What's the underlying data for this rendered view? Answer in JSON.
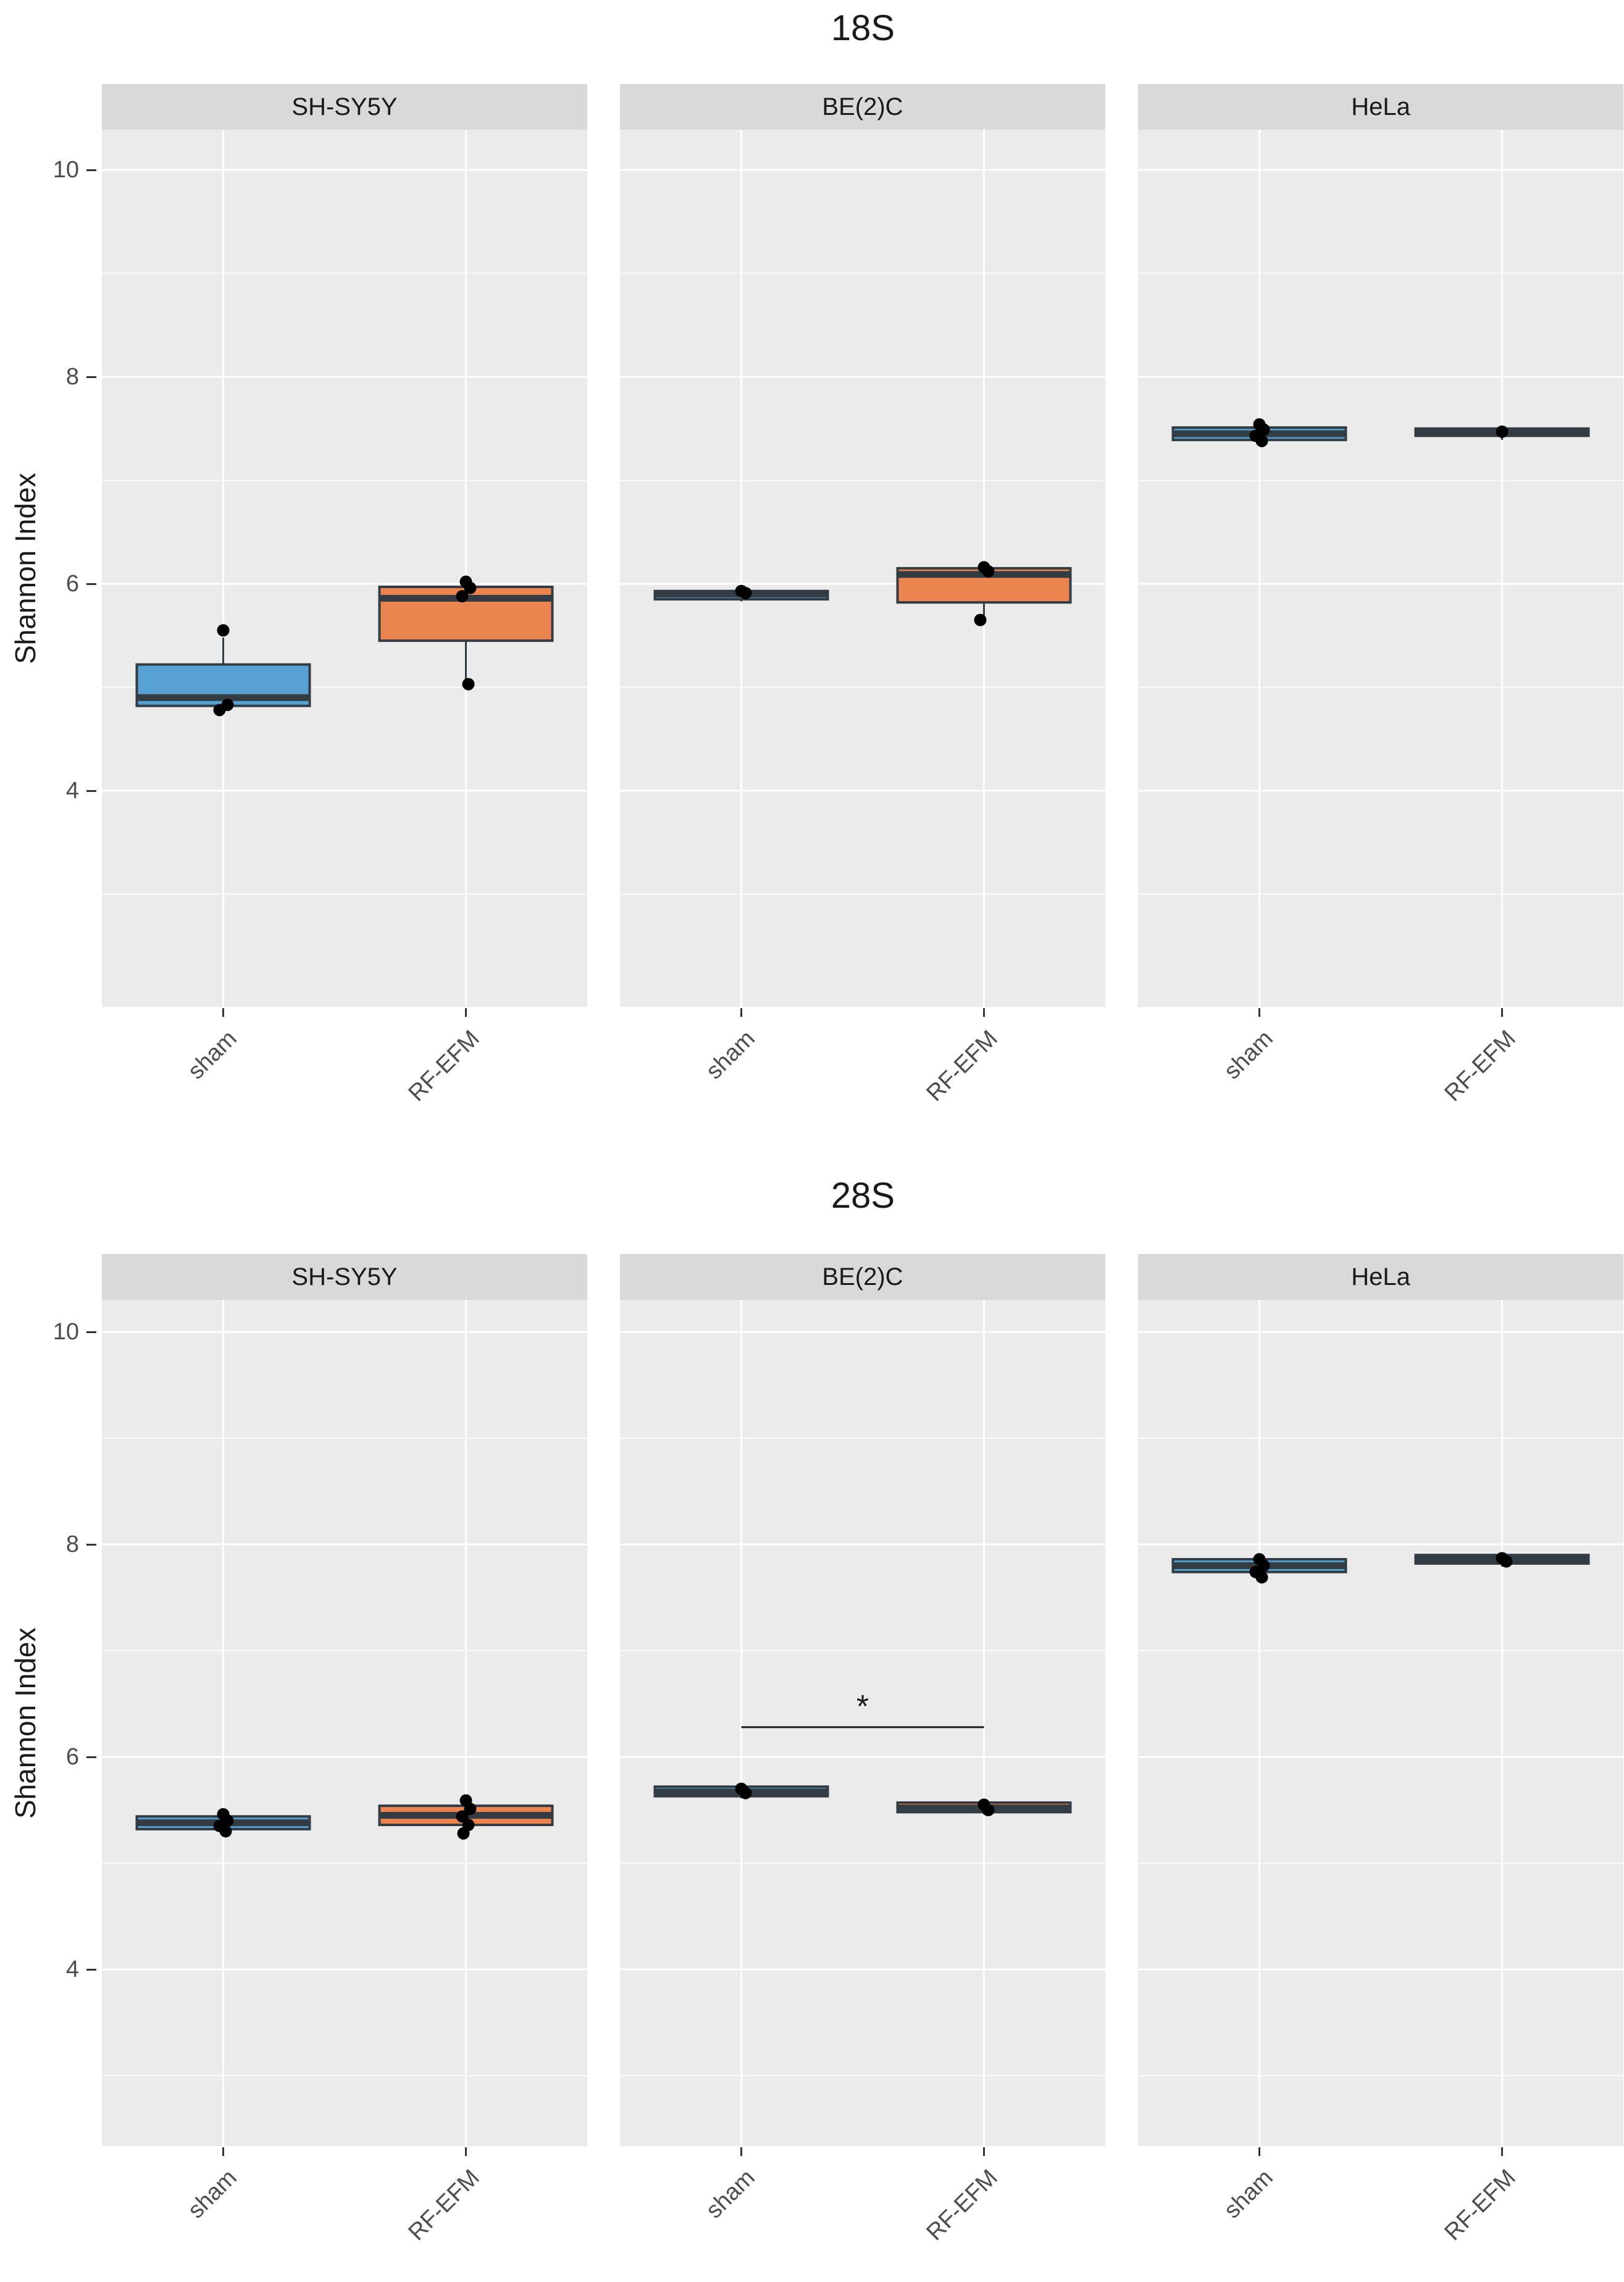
{
  "figure": {
    "background": "#ffffff",
    "y_axis_title": "Shannon Index"
  },
  "colors": {
    "panel_bg": "#ebebeb",
    "strip_bg": "#d9d9d9",
    "grid": "#ffffff",
    "box_outline": "#333c43",
    "median": "#333c43",
    "sham_fill": "#58a2d3",
    "rfefm_fill": "#ec8450",
    "point": "#000000",
    "tick_text": "#4d4d4d",
    "title_text": "#1a1a1a"
  },
  "chart_data": [
    {
      "type": "boxplot",
      "title": "18S",
      "ylabel": "Shannon Index",
      "y_ticks": [
        10,
        8,
        6,
        4
      ],
      "y_minor_ticks": [
        9,
        7,
        5,
        3
      ],
      "ylim_shown": [
        2.0,
        10.4
      ],
      "grid": "on",
      "x_categories": [
        "sham",
        "RF-EFM"
      ],
      "facets": [
        {
          "label": "SH-SY5Y",
          "boxes": [
            {
              "group": "sham",
              "fill": "sham_fill",
              "q1": 4.82,
              "q3": 5.22,
              "median": 4.9,
              "whisker_low": 4.76,
              "whisker_high": 5.48,
              "points": [
                5.55,
                4.83,
                4.78
              ]
            },
            {
              "group": "RF-EFM",
              "fill": "rfefm_fill",
              "q1": 5.45,
              "q3": 5.97,
              "median": 5.86,
              "whisker_low": 5.03,
              "whisker_high": 6.0,
              "points": [
                6.02,
                5.96,
                5.88,
                5.03
              ]
            }
          ]
        },
        {
          "label": "BE(2)C",
          "boxes": [
            {
              "group": "sham",
              "fill": "sham_fill",
              "q1": 5.85,
              "q3": 5.93,
              "median": 5.9,
              "whisker_low": 5.83,
              "whisker_high": 5.95,
              "points": [
                5.93,
                5.91
              ]
            },
            {
              "group": "RF-EFM",
              "fill": "rfefm_fill",
              "q1": 5.82,
              "q3": 6.15,
              "median": 6.09,
              "whisker_low": 5.65,
              "whisker_high": 6.16,
              "points": [
                6.16,
                6.12,
                5.65
              ]
            }
          ]
        },
        {
          "label": "HeLa",
          "boxes": [
            {
              "group": "sham",
              "fill": "sham_fill",
              "q1": 7.39,
              "q3": 7.51,
              "median": 7.45,
              "whisker_low": 7.35,
              "whisker_high": 7.55,
              "points": [
                7.54,
                7.49,
                7.43,
                7.38
              ]
            },
            {
              "group": "RF-EFM",
              "fill": "rfefm_fill",
              "q1": 7.43,
              "q3": 7.5,
              "median": 7.46,
              "whisker_low": 7.39,
              "whisker_high": 7.52,
              "points": [
                7.47
              ]
            }
          ]
        }
      ]
    },
    {
      "type": "boxplot",
      "title": "28S",
      "ylabel": "Shannon Index",
      "y_ticks": [
        10,
        8,
        6,
        4
      ],
      "y_minor_ticks": [
        9,
        7,
        5,
        3
      ],
      "ylim_shown": [
        2.3,
        10.3
      ],
      "grid": "on",
      "x_categories": [
        "sham",
        "RF-EFM"
      ],
      "facets": [
        {
          "label": "SH-SY5Y",
          "boxes": [
            {
              "group": "sham",
              "fill": "sham_fill",
              "q1": 5.32,
              "q3": 5.44,
              "median": 5.38,
              "whisker_low": 5.29,
              "whisker_high": 5.47,
              "points": [
                5.46,
                5.4,
                5.35,
                5.3
              ]
            },
            {
              "group": "RF-EFM",
              "fill": "rfefm_fill",
              "q1": 5.36,
              "q3": 5.54,
              "median": 5.45,
              "whisker_low": 5.29,
              "whisker_high": 5.58,
              "points": [
                5.59,
                5.51,
                5.44,
                5.36,
                5.28
              ]
            }
          ]
        },
        {
          "label": "BE(2)C",
          "boxes": [
            {
              "group": "sham",
              "fill": "sham_fill",
              "q1": 5.63,
              "q3": 5.72,
              "median": 5.67,
              "whisker_low": 5.61,
              "whisker_high": 5.74,
              "points": [
                5.7,
                5.66
              ]
            },
            {
              "group": "RF-EFM",
              "fill": "rfefm_fill",
              "q1": 5.48,
              "q3": 5.57,
              "median": 5.52,
              "whisker_low": 5.46,
              "whisker_high": 5.59,
              "points": [
                5.55,
                5.5
              ]
            }
          ],
          "significance": {
            "label": "*",
            "bar_value": 6.28,
            "from_category": "sham",
            "to_category": "RF-EFM"
          }
        },
        {
          "label": "HeLa",
          "boxes": [
            {
              "group": "sham",
              "fill": "sham_fill",
              "q1": 7.74,
              "q3": 7.86,
              "median": 7.8,
              "whisker_low": 7.7,
              "whisker_high": 7.89,
              "points": [
                7.86,
                7.8,
                7.74,
                7.69
              ]
            },
            {
              "group": "RF-EFM",
              "fill": "rfefm_fill",
              "q1": 7.82,
              "q3": 7.9,
              "median": 7.86,
              "whisker_low": 7.79,
              "whisker_high": 7.92,
              "points": [
                7.87,
                7.84
              ]
            }
          ]
        }
      ]
    }
  ]
}
